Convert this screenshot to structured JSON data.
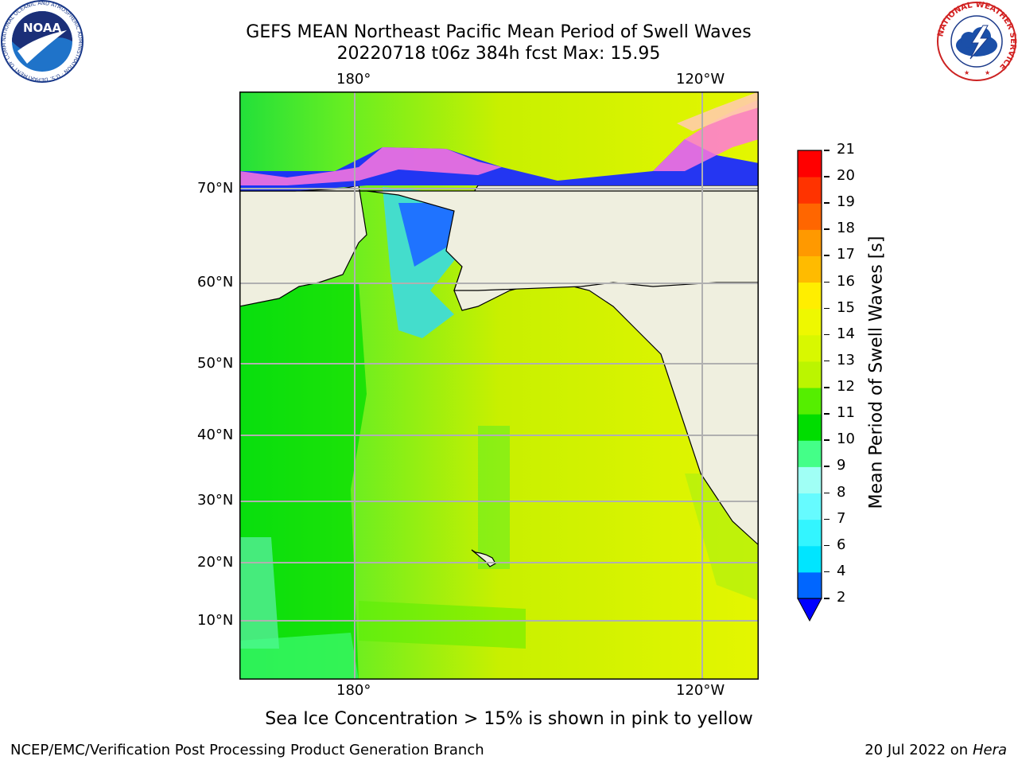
{
  "title_line1": "GEFS MEAN Northeast Pacific Mean Period of Swell Waves",
  "title_line2": "20220718 t06z 384h fcst   Max: 15.95",
  "map": {
    "lon_ticks_top": [
      "180°",
      "120°W"
    ],
    "lon_ticks_bottom": [
      "180°",
      "120°W"
    ],
    "lat_ticks": [
      "70°N",
      "60°N",
      "50°N",
      "40°N",
      "30°N",
      "20°N",
      "10°N"
    ],
    "land_color": "#efefdf",
    "grid_color": "#b0b0b0"
  },
  "colorbar": {
    "label": "Mean Period of Swell Waves [s]",
    "ticks": [
      "2",
      "4",
      "6",
      "7",
      "8",
      "9",
      "10",
      "11",
      "12",
      "13",
      "14",
      "15",
      "16",
      "17",
      "18",
      "19",
      "20",
      "21"
    ],
    "colors": [
      "#0066ff",
      "#00e5ff",
      "#33f5ff",
      "#66fbff",
      "#a0fff5",
      "#44ff88",
      "#00dd00",
      "#55ee00",
      "#bbf500",
      "#d8f800",
      "#eef800",
      "#ffee00",
      "#ffbb00",
      "#ff9900",
      "#ff6600",
      "#ff3300",
      "#ff0000"
    ],
    "under_color": "#0000ff"
  },
  "note": "Sea Ice Concentration > 15% is shown in pink to yellow",
  "footer_left": "NCEP/EMC/Verification Post Processing Product Generation Branch",
  "footer_right_date": "20 Jul 2022 on ",
  "footer_right_host": "Hera",
  "logos": {
    "noaa_text": "NOAA",
    "noaa_ring": "NATIONAL OCEANIC AND ATMOSPHERIC ADMINISTRATION · U.S. DEPARTMENT OF COMMERCE",
    "nws_ring": "NATIONAL WEATHER SERVICE"
  }
}
